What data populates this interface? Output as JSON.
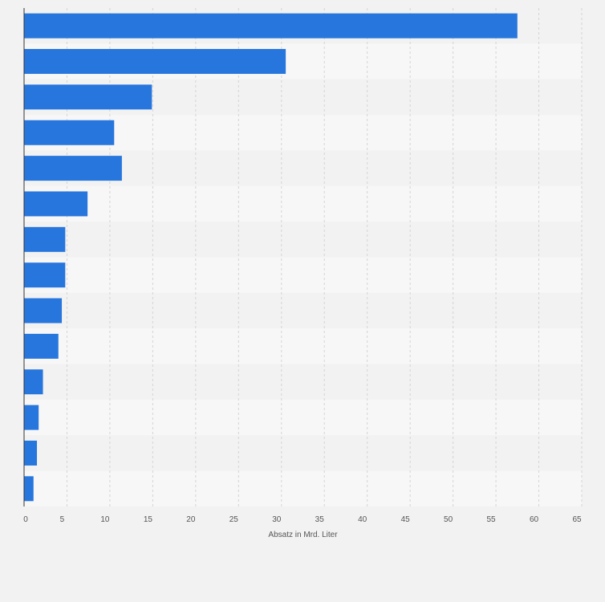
{
  "chart_data": {
    "type": "bar",
    "orientation": "horizontal",
    "title": "",
    "xlabel": "Absatz in Mrd. Liter",
    "ylabel": "",
    "xlim": [
      0,
      65
    ],
    "x_ticks": [
      0,
      5,
      10,
      15,
      20,
      25,
      30,
      35,
      40,
      45,
      50,
      55,
      60,
      65
    ],
    "categories": [
      "",
      "",
      "",
      "",
      "",
      "",
      "",
      "",
      "",
      "",
      "",
      "",
      "",
      ""
    ],
    "values": [
      57.5,
      30.5,
      14.9,
      10.5,
      11.4,
      7.4,
      4.8,
      4.8,
      4.4,
      4.0,
      2.2,
      1.7,
      1.5,
      1.1
    ],
    "grid": true,
    "legend": "none",
    "bar_color": "#2776dd",
    "band_colors": [
      "#f2f2f2",
      "#f7f7f7"
    ]
  }
}
